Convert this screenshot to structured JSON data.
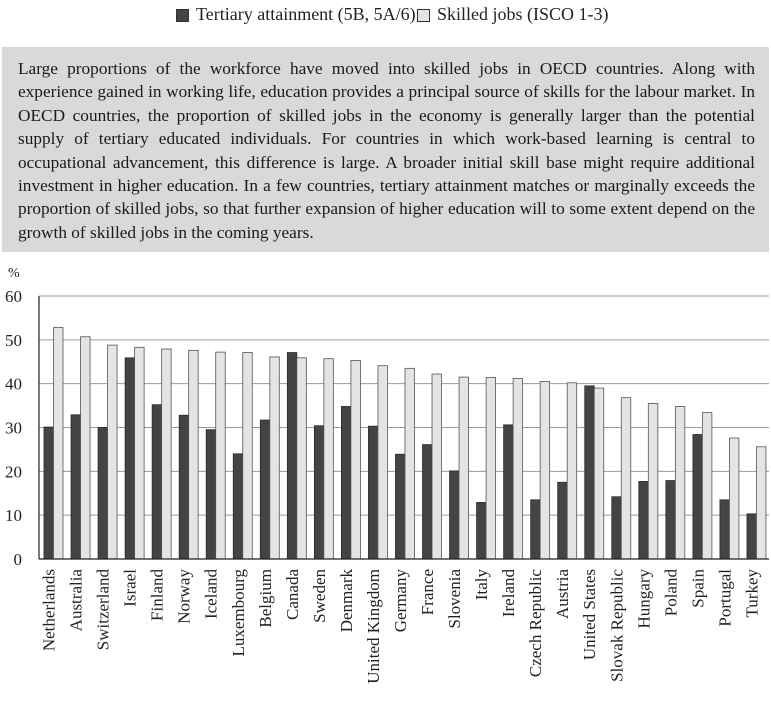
{
  "legend": {
    "tertiary": "Tertiary attainment (5B, 5A/6)",
    "skilled": "Skilled jobs (ISCO 1-3)"
  },
  "note": "Large proportions of the workforce have moved into skilled jobs in OECD countries. Along with experience gained in working life, education provides a principal source of skills for the labour market. In OECD countries, the proportion of skilled jobs in the economy is generally larger than the potential supply of tertiary educated individuals. For countries in which work-based learning is central to occupational advancement, this difference is large. A broader initial skill base might require additional investment in higher education. In a few countries, tertiary attainment matches or marginally exceeds the proportion of skilled jobs, so that further expansion of higher education will to some extent depend on the growth of skilled jobs in the coming years.",
  "colors": {
    "tertiary": "#444444",
    "skilled": "#e4e4e4",
    "grid": "#9a9a9a",
    "note_bg": "#d9d9d9"
  },
  "chart_data": {
    "type": "bar",
    "ylabel": "%",
    "ylim": [
      0,
      60
    ],
    "yticks": [
      0,
      10,
      20,
      30,
      40,
      50,
      60
    ],
    "grid": true,
    "legend_position": "top",
    "categories": [
      "Netherlands",
      "Australia",
      "Switzerland",
      "Israel",
      "Finland",
      "Norway",
      "Iceland",
      "Luxembourg",
      "Belgium",
      "Canada",
      "Sweden",
      "Denmark",
      "United Kingdom",
      "Germany",
      "France",
      "Slovenia",
      "Italy",
      "Ireland",
      "Czech Republic",
      "Austria",
      "United States",
      "Slovak Republic",
      "Hungary",
      "Poland",
      "Spain",
      "Portugal",
      "Turkey"
    ],
    "series": [
      {
        "name": "Tertiary attainment (5B, 5A/6)",
        "values": [
          30.1,
          32.9,
          30.0,
          45.9,
          35.2,
          32.8,
          29.5,
          24.0,
          31.7,
          47.1,
          30.4,
          34.8,
          30.3,
          23.9,
          26.1,
          20.1,
          12.9,
          30.6,
          13.5,
          17.5,
          39.5,
          14.2,
          17.7,
          17.9,
          28.4,
          13.5,
          10.3
        ]
      },
      {
        "name": "Skilled jobs (ISCO 1-3)",
        "values": [
          52.8,
          50.7,
          48.8,
          48.3,
          47.9,
          47.6,
          47.2,
          47.1,
          46.1,
          45.9,
          45.7,
          45.3,
          44.1,
          43.5,
          42.2,
          41.5,
          41.4,
          41.2,
          40.5,
          40.2,
          39.0,
          36.8,
          35.5,
          34.8,
          33.4,
          27.6,
          25.6
        ]
      }
    ]
  }
}
